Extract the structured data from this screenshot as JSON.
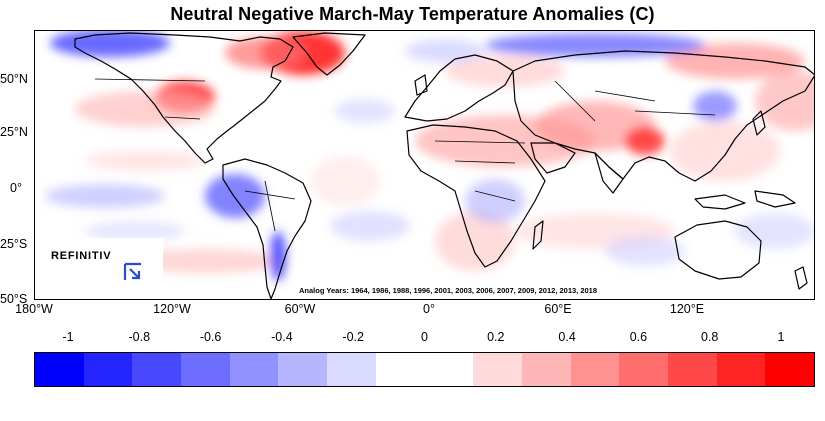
{
  "title": "Neutral Negative March-May Temperature Anomalies (C)",
  "map": {
    "lat_labels": [
      "50°N",
      "25°N",
      "0°",
      "25°S",
      "50°S"
    ],
    "lon_labels": [
      "180°W",
      "120°W",
      "60°W",
      "0°",
      "60°E",
      "120°E"
    ],
    "analog_years": "Analog Years: 1964, 1986, 1988, 1996, 2001, 2003, 2006, 2007, 2009, 2012, 2013, 2018",
    "logo_text": "REFINITIV",
    "logo_icon": "refinitiv-logo-icon"
  },
  "colorbar": {
    "tick_labels": [
      "-1",
      "-0.8",
      "-0.6",
      "-0.4",
      "-0.2",
      "0",
      "0.2",
      "0.4",
      "0.6",
      "0.8",
      "1"
    ],
    "colors": [
      "#0000ff",
      "#2424ff",
      "#4848ff",
      "#6d6dff",
      "#9191ff",
      "#b6b6ff",
      "#dadaff",
      "#ffffff",
      "#ffffff",
      "#ffdada",
      "#ffb6b6",
      "#ff9191",
      "#ff6d6d",
      "#ff4848",
      "#ff2424",
      "#ff0000"
    ]
  }
}
